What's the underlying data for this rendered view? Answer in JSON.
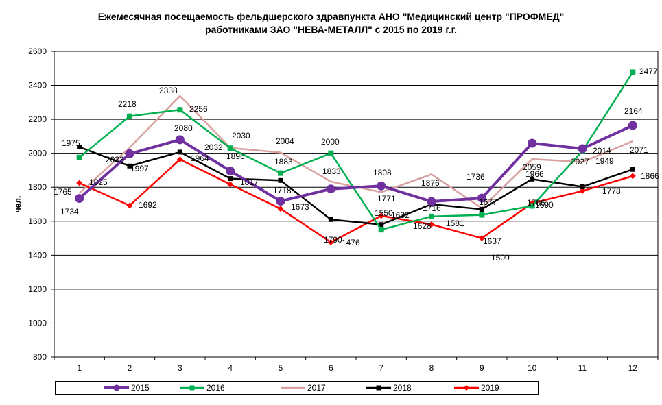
{
  "chart_data": {
    "type": "line",
    "title_lines": [
      "Ежемесячная посещаемость фельдшерского здравпункта АНО \"Медицинский центр \"ПРОФМЕД\"",
      "работниками ЗАО \"НЕВА-МЕТАЛЛ\" с 2015 по 2019 г.г."
    ],
    "ylabel": "чел.",
    "xlabel": "",
    "categories": [
      "1",
      "2",
      "3",
      "4",
      "5",
      "6",
      "7",
      "8",
      "9",
      "10",
      "11",
      "12"
    ],
    "ylim": [
      800,
      2600
    ],
    "yticks": [
      800,
      1000,
      1200,
      1400,
      1600,
      1800,
      2000,
      2200,
      2400,
      2600
    ],
    "grid": "horizontal",
    "legend_position": "bottom",
    "series": [
      {
        "name": "2015",
        "color": "#7030a0",
        "marker": "circle",
        "values": [
          1734,
          1997,
          2080,
          1896,
          1718,
          1790,
          1808,
          1716,
          1736,
          2059,
          2027,
          2164
        ]
      },
      {
        "name": "2016",
        "color": "#00b050",
        "marker": "square",
        "values": [
          1975,
          2218,
          2256,
          2030,
          1883,
          2000,
          1550,
          1628,
          1637,
          1690,
          2014,
          2477
        ]
      },
      {
        "name": "2017",
        "color": "#d9a0a0",
        "marker": "none",
        "values": [
          1765,
          2033,
          2338,
          2032,
          2004,
          1833,
          1771,
          1876,
          1677,
          1966,
          1949,
          2071
        ]
      },
      {
        "name": "2018",
        "color": "#000000",
        "marker": "square",
        "values": [
          2037,
          1925,
          2007,
          1851,
          1840,
          1610,
          1580,
          1700,
          1670,
          1848,
          1803,
          1905
        ]
      },
      {
        "name": "2019",
        "color": "#ff0000",
        "marker": "diamond",
        "values": [
          1825,
          1692,
          1964,
          1817,
          1673,
          1476,
          1632,
          1581,
          1500,
          1706,
          1778,
          1866
        ]
      }
    ],
    "labels": [
      {
        "text": "1734"
      },
      {
        "text": "1765"
      },
      {
        "text": "1975"
      },
      {
        "text": "1825"
      },
      {
        "text": "2218"
      },
      {
        "text": "2033"
      },
      {
        "text": "1997"
      },
      {
        "text": "1692"
      },
      {
        "text": "2338"
      },
      {
        "text": "2256"
      },
      {
        "text": "2080"
      },
      {
        "text": "1964"
      },
      {
        "text": "2030"
      },
      {
        "text": "2032"
      },
      {
        "text": "1896"
      },
      {
        "text": "1817"
      },
      {
        "text": "2004"
      },
      {
        "text": "1883"
      },
      {
        "text": "1718"
      },
      {
        "text": "1673"
      },
      {
        "text": "2000"
      },
      {
        "text": "1833"
      },
      {
        "text": "1790"
      },
      {
        "text": "1476"
      },
      {
        "text": "1808"
      },
      {
        "text": "1771"
      },
      {
        "text": "1550"
      },
      {
        "text": "1632"
      },
      {
        "text": "1876"
      },
      {
        "text": "1716"
      },
      {
        "text": "1628"
      },
      {
        "text": "1581"
      },
      {
        "text": "1736"
      },
      {
        "text": "1677"
      },
      {
        "text": "1637"
      },
      {
        "text": "1500"
      },
      {
        "text": "2059"
      },
      {
        "text": "1966"
      },
      {
        "text": "1706"
      },
      {
        "text": "1690"
      },
      {
        "text": "2027"
      },
      {
        "text": "2014"
      },
      {
        "text": "1949"
      },
      {
        "text": "1778"
      },
      {
        "text": "2477"
      },
      {
        "text": "2164"
      },
      {
        "text": "2071"
      },
      {
        "text": "1866"
      }
    ]
  }
}
